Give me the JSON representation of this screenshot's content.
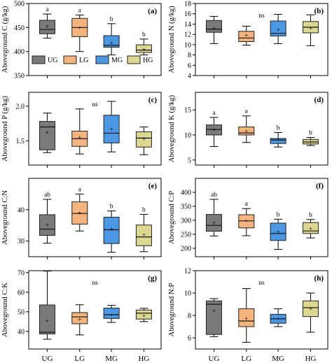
{
  "groups": [
    "UG",
    "LG",
    "MG",
    "HG"
  ],
  "colors": {
    "UG": "#7a7a7a",
    "LG": "#f5b47c",
    "MG": "#4a98e3",
    "HG": "#dcd890"
  },
  "legend": {
    "position": "bottom-left of panel (a)",
    "entries": [
      "UG",
      "LG",
      "MG",
      "HG"
    ]
  },
  "chart_data": [
    {
      "panel": "(a)",
      "type": "boxplot",
      "ylabel": "Aboveground C (g/kg)",
      "ylim": [
        350,
        500
      ],
      "yticks": [
        350,
        400,
        450,
        500
      ],
      "categories": [
        "UG",
        "LG",
        "MG",
        "HG"
      ],
      "boxes": [
        {
          "group": "UG",
          "min": 428,
          "q1": 437,
          "median": 446,
          "q3": 465,
          "max": 478,
          "mean": 452,
          "sig": "a"
        },
        {
          "group": "LG",
          "min": 400,
          "q1": 431,
          "median": 450,
          "q3": 469,
          "max": 476,
          "mean": 449,
          "sig": "a"
        },
        {
          "group": "MG",
          "min": 393,
          "q1": 409,
          "median": 413,
          "q3": 433,
          "max": 458,
          "mean": 418,
          "sig": "b"
        },
        {
          "group": "HG",
          "min": 393,
          "q1": 398,
          "median": 403,
          "q3": 414,
          "max": 426,
          "mean": 404,
          "sig": "b"
        }
      ],
      "ns": false
    },
    {
      "panel": "(b)",
      "type": "boxplot",
      "ylabel": "Aboveground N (g/kg)",
      "ylim": [
        4,
        18
      ],
      "yticks": [
        4,
        6,
        8,
        10,
        12,
        14,
        16,
        18
      ],
      "categories": [
        "UG",
        "LG",
        "MG",
        "HG"
      ],
      "boxes": [
        {
          "group": "UG",
          "min": 10.2,
          "q1": 12.4,
          "median": 13.0,
          "q3": 14.7,
          "max": 15.5,
          "mean": 13.2
        },
        {
          "group": "LG",
          "min": 9.9,
          "q1": 10.6,
          "median": 11.3,
          "q3": 12.6,
          "max": 13.6,
          "mean": 11.8
        },
        {
          "group": "MG",
          "min": 10.2,
          "q1": 11.7,
          "median": 12.2,
          "q3": 14.6,
          "max": 15.9,
          "mean": 12.9
        },
        {
          "group": "HG",
          "min": 9.8,
          "q1": 12.3,
          "median": 13.4,
          "q3": 14.5,
          "max": 15.8,
          "mean": 13.2
        }
      ],
      "ns": true,
      "ns_label": "ns"
    },
    {
      "panel": "(c)",
      "type": "boxplot",
      "ylabel": "Aboveground P (g/kg)",
      "ylim": [
        1.15,
        2.2
      ],
      "yticks": [
        1.5,
        2.0
      ],
      "yticklabels": [
        "1.5",
        "2.0"
      ],
      "categories": [
        "UG",
        "LG",
        "MG",
        "HG"
      ],
      "boxes": [
        {
          "group": "UG",
          "min": 1.33,
          "q1": 1.37,
          "median": 1.7,
          "q3": 1.78,
          "max": 1.9,
          "mean": 1.62
        },
        {
          "group": "LG",
          "min": 1.31,
          "q1": 1.42,
          "median": 1.53,
          "q3": 1.64,
          "max": 1.96,
          "mean": 1.55
        },
        {
          "group": "MG",
          "min": 1.34,
          "q1": 1.47,
          "median": 1.61,
          "q3": 1.87,
          "max": 2.07,
          "mean": 1.67
        },
        {
          "group": "HG",
          "min": 1.3,
          "q1": 1.41,
          "median": 1.54,
          "q3": 1.63,
          "max": 1.7,
          "mean": 1.53
        }
      ],
      "ns": true,
      "ns_label": "ns"
    },
    {
      "panel": "(d)",
      "type": "boxplot",
      "ylabel": "Aboveground K (g/kg)",
      "ylim": [
        4,
        18.5
      ],
      "yticks": [
        5,
        10,
        15
      ],
      "yticklabels": [
        "5",
        "10",
        "15"
      ],
      "categories": [
        "UG",
        "LG",
        "MG",
        "HG"
      ],
      "boxes": [
        {
          "group": "UG",
          "min": 7.7,
          "q1": 10.0,
          "median": 11.1,
          "q3": 12.0,
          "max": 13.5,
          "mean": 11.0,
          "sig": "a"
        },
        {
          "group": "LG",
          "min": 8.5,
          "q1": 10.0,
          "median": 10.4,
          "q3": 11.6,
          "max": 13.8,
          "mean": 10.7,
          "sig": "a"
        },
        {
          "group": "MG",
          "min": 7.6,
          "q1": 8.3,
          "median": 9.0,
          "q3": 9.3,
          "max": 10.5,
          "mean": 9.0,
          "sig": "b"
        },
        {
          "group": "HG",
          "min": 7.9,
          "q1": 8.2,
          "median": 8.6,
          "q3": 9.1,
          "max": 9.5,
          "mean": 8.6,
          "sig": "b"
        }
      ],
      "ns": false
    },
    {
      "panel": "(e)",
      "type": "boxplot",
      "ylabel": "Aboveground C:N",
      "ylim": [
        25,
        50
      ],
      "yticks": [
        30,
        40
      ],
      "yticklabels": [
        "30",
        "40"
      ],
      "categories": [
        "UG",
        "LG",
        "MG",
        "HG"
      ],
      "boxes": [
        {
          "group": "UG",
          "min": 29.3,
          "q1": 31.8,
          "median": 33.8,
          "q3": 38.4,
          "max": 43.3,
          "mean": 35.2,
          "sig": "ab"
        },
        {
          "group": "LG",
          "min": 33.2,
          "q1": 35.4,
          "median": 38.8,
          "q3": 42.5,
          "max": 45.0,
          "mean": 38.9,
          "sig": "a"
        },
        {
          "group": "MG",
          "min": 26.4,
          "q1": 29.2,
          "median": 33.6,
          "q3": 37.6,
          "max": 39.6,
          "mean": 33.8,
          "sig": "b"
        },
        {
          "group": "HG",
          "min": 26.6,
          "q1": 28.5,
          "median": 31.3,
          "q3": 35.1,
          "max": 38.5,
          "mean": 31.9,
          "sig": "b"
        }
      ],
      "ns": false
    },
    {
      "panel": "(f)",
      "type": "boxplot",
      "ylabel": "Aboveground C:P",
      "ylim": [
        170,
        450
      ],
      "yticks": [
        200,
        250,
        300,
        350,
        400
      ],
      "categories": [
        "UG",
        "LG",
        "MG",
        "HG"
      ],
      "boxes": [
        {
          "group": "UG",
          "min": 244,
          "q1": 261,
          "median": 282,
          "q3": 321,
          "max": 375,
          "mean": 290,
          "sig": "ab"
        },
        {
          "group": "LG",
          "min": 245,
          "q1": 273,
          "median": 298,
          "q3": 320,
          "max": 342,
          "mean": 298,
          "sig": "a"
        },
        {
          "group": "MG",
          "min": 196,
          "q1": 228,
          "median": 253,
          "q3": 290,
          "max": 304,
          "mean": 258,
          "sig": "b"
        },
        {
          "group": "HG",
          "min": 237,
          "q1": 253,
          "median": 262,
          "q3": 292,
          "max": 303,
          "mean": 270,
          "sig": "b"
        }
      ],
      "ns": false
    },
    {
      "panel": "(g)",
      "type": "boxplot",
      "ylabel": "Aboveground C:K",
      "ylim": [
        31,
        71
      ],
      "yticks": [
        40,
        50,
        60,
        70
      ],
      "categories": [
        "UG",
        "LG",
        "MG",
        "HG"
      ],
      "boxes": [
        {
          "group": "UG",
          "min": 36.0,
          "q1": 38.7,
          "median": 39.6,
          "q3": 53.5,
          "max": 70.8,
          "mean": 45.3
        },
        {
          "group": "LG",
          "min": 38.2,
          "q1": 43.9,
          "median": 47.4,
          "q3": 49.6,
          "max": 53.6,
          "mean": 46.0
        },
        {
          "group": "MG",
          "min": 44.6,
          "q1": 46.6,
          "median": 48.5,
          "q3": 51.9,
          "max": 53.3,
          "mean": 48.3
        },
        {
          "group": "HG",
          "min": 45.0,
          "q1": 46.3,
          "median": 49.3,
          "q3": 50.9,
          "max": 51.8,
          "mean": 48.0
        }
      ],
      "ns": true,
      "ns_label": "ns"
    },
    {
      "panel": "(h)",
      "type": "boxplot",
      "ylabel": "Aboveground N:P",
      "ylim": [
        5,
        12
      ],
      "yticks": [
        6,
        8,
        10,
        12
      ],
      "categories": [
        "UG",
        "LG",
        "MG",
        "HG"
      ],
      "boxes": [
        {
          "group": "UG",
          "min": 6.1,
          "q1": 6.3,
          "median": 9.0,
          "q3": 9.3,
          "max": 9.5,
          "mean": 8.4
        },
        {
          "group": "LG",
          "min": 5.6,
          "q1": 7.0,
          "median": 7.5,
          "q3": 8.6,
          "max": 10.4,
          "mean": 7.7
        },
        {
          "group": "MG",
          "min": 7.0,
          "q1": 7.3,
          "median": 7.7,
          "q3": 8.1,
          "max": 8.6,
          "mean": 7.7
        },
        {
          "group": "HG",
          "min": 6.5,
          "q1": 7.9,
          "median": 8.7,
          "q3": 9.3,
          "max": 10.0,
          "mean": 8.6
        }
      ],
      "ns": true,
      "ns_label": "ns"
    }
  ],
  "x_labels": [
    "UG",
    "LG",
    "MG",
    "HG"
  ]
}
